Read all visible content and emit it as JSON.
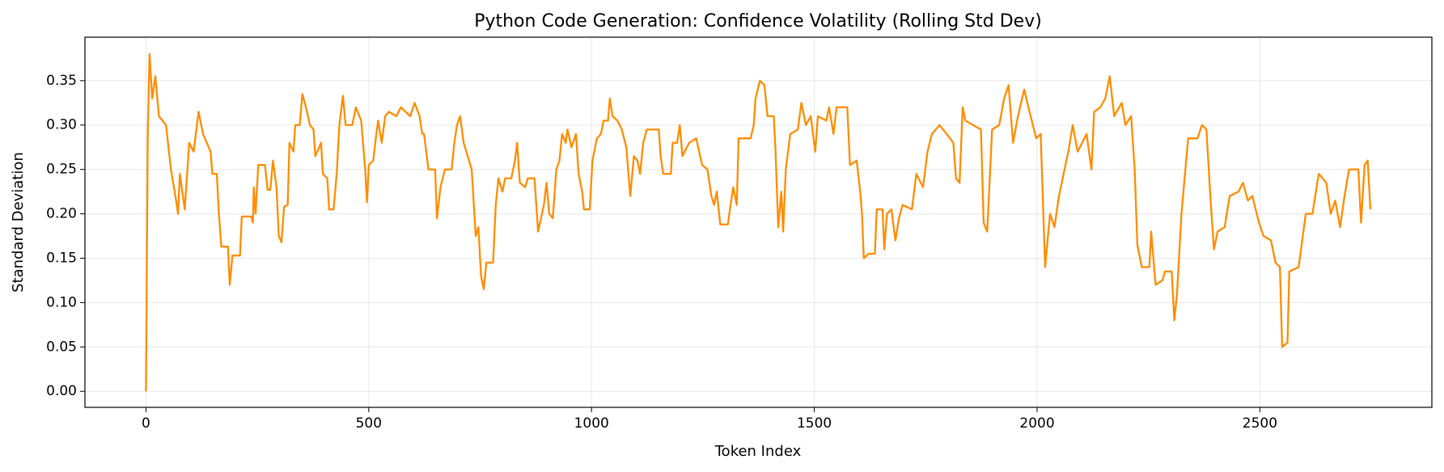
{
  "chart_data": {
    "type": "line",
    "title": "Python Code Generation: Confidence Volatility (Rolling Std Dev)",
    "x_label": "Token Index",
    "y_label": "Standard Deviation",
    "xlim": [
      -137,
      2886
    ],
    "ylim": [
      -0.018,
      0.399
    ],
    "xticks": [
      0,
      500,
      1000,
      1500,
      2000,
      2500
    ],
    "yticks": [
      {
        "value": 0,
        "label": "0.00"
      },
      {
        "value": 0.05,
        "label": "0.05"
      },
      {
        "value": 0.1,
        "label": "0.10"
      },
      {
        "value": 0.15,
        "label": "0.15"
      },
      {
        "value": 0.2,
        "label": "0.20"
      },
      {
        "value": 0.25,
        "label": "0.25"
      },
      {
        "value": 0.3,
        "label": "0.30"
      },
      {
        "value": 0.35,
        "label": "0.35"
      }
    ],
    "grid": true,
    "x": [
      0,
      4,
      8,
      14,
      21,
      29,
      45,
      56,
      66,
      72,
      76,
      87,
      97,
      107,
      118,
      128,
      145,
      149,
      159,
      163,
      169,
      184,
      188,
      194,
      211,
      215,
      236,
      240,
      242,
      246,
      252,
      267,
      273,
      279,
      285,
      293,
      298,
      304,
      310,
      318,
      322,
      331,
      335,
      345,
      351,
      359,
      368,
      376,
      380,
      393,
      397,
      407,
      411,
      421,
      428,
      434,
      442,
      448,
      463,
      471,
      483,
      492,
      496,
      500,
      510,
      517,
      521,
      529,
      537,
      545,
      562,
      572,
      593,
      603,
      614,
      620,
      624,
      634,
      649,
      653,
      661,
      671,
      686,
      692,
      698,
      705,
      713,
      731,
      740,
      746,
      752,
      758,
      764,
      779,
      785,
      791,
      800,
      806,
      820,
      828,
      833,
      839,
      851,
      857,
      872,
      880,
      893,
      899,
      905,
      913,
      921,
      928,
      934,
      942,
      946,
      955,
      965,
      971,
      979,
      983,
      996,
      1002,
      1012,
      1021,
      1027,
      1037,
      1041,
      1047,
      1058,
      1068,
      1078,
      1087,
      1095,
      1103,
      1109,
      1116,
      1124,
      1151,
      1155,
      1161,
      1178,
      1182,
      1192,
      1198,
      1204,
      1219,
      1235,
      1248,
      1260,
      1269,
      1275,
      1281,
      1289,
      1306,
      1312,
      1318,
      1326,
      1330,
      1357,
      1364,
      1368,
      1378,
      1388,
      1395,
      1409,
      1413,
      1419,
      1426,
      1430,
      1436,
      1446,
      1463,
      1471,
      1481,
      1492,
      1502,
      1508,
      1527,
      1533,
      1543,
      1550,
      1574,
      1580,
      1595,
      1603,
      1607,
      1611,
      1622,
      1636,
      1640,
      1653,
      1657,
      1663,
      1673,
      1682,
      1690,
      1698,
      1719,
      1729,
      1744,
      1754,
      1764,
      1781,
      1797,
      1812,
      1818,
      1826,
      1833,
      1839,
      1874,
      1880,
      1888,
      1899,
      1915,
      1926,
      1936,
      1946,
      1957,
      1971,
      1983,
      1998,
      2008,
      2018,
      2029,
      2039,
      2049,
      2070,
      2080,
      2091,
      2111,
      2122,
      2128,
      2142,
      2153,
      2163,
      2173,
      2190,
      2198,
      2211,
      2219,
      2225,
      2235,
      2252,
      2256,
      2266,
      2281,
      2287,
      2302,
      2308,
      2314,
      2324,
      2339,
      2360,
      2370,
      2380,
      2390,
      2397,
      2405,
      2421,
      2432,
      2452,
      2462,
      2473,
      2483,
      2498,
      2508,
      2525,
      2535,
      2545,
      2550,
      2562,
      2566,
      2587,
      2591,
      2603,
      2618,
      2632,
      2649,
      2659,
      2669,
      2680,
      2690,
      2700,
      2721,
      2727,
      2735,
      2742,
      2748
    ],
    "series": [
      {
        "name": "Rolling Std Dev",
        "color": "#ff8c00",
        "values": [
          0.0,
          0.29,
          0.38,
          0.33,
          0.355,
          0.31,
          0.3,
          0.25,
          0.22,
          0.2,
          0.245,
          0.205,
          0.28,
          0.27,
          0.315,
          0.29,
          0.27,
          0.245,
          0.245,
          0.205,
          0.163,
          0.163,
          0.12,
          0.153,
          0.153,
          0.197,
          0.197,
          0.19,
          0.23,
          0.2,
          0.255,
          0.255,
          0.227,
          0.227,
          0.26,
          0.23,
          0.175,
          0.168,
          0.208,
          0.21,
          0.28,
          0.27,
          0.3,
          0.3,
          0.335,
          0.32,
          0.3,
          0.295,
          0.265,
          0.28,
          0.245,
          0.24,
          0.205,
          0.205,
          0.245,
          0.3,
          0.333,
          0.3,
          0.3,
          0.32,
          0.305,
          0.25,
          0.213,
          0.255,
          0.26,
          0.29,
          0.305,
          0.28,
          0.31,
          0.315,
          0.31,
          0.32,
          0.31,
          0.325,
          0.31,
          0.29,
          0.29,
          0.25,
          0.25,
          0.195,
          0.23,
          0.25,
          0.25,
          0.28,
          0.3,
          0.31,
          0.28,
          0.25,
          0.175,
          0.185,
          0.13,
          0.115,
          0.145,
          0.145,
          0.21,
          0.24,
          0.225,
          0.24,
          0.24,
          0.26,
          0.28,
          0.235,
          0.23,
          0.24,
          0.24,
          0.18,
          0.21,
          0.235,
          0.2,
          0.195,
          0.25,
          0.26,
          0.29,
          0.28,
          0.295,
          0.275,
          0.29,
          0.245,
          0.225,
          0.205,
          0.205,
          0.26,
          0.285,
          0.29,
          0.305,
          0.305,
          0.33,
          0.31,
          0.305,
          0.295,
          0.275,
          0.22,
          0.265,
          0.26,
          0.245,
          0.28,
          0.295,
          0.295,
          0.265,
          0.245,
          0.245,
          0.28,
          0.28,
          0.3,
          0.265,
          0.28,
          0.285,
          0.255,
          0.25,
          0.22,
          0.21,
          0.225,
          0.188,
          0.188,
          0.21,
          0.23,
          0.21,
          0.285,
          0.285,
          0.3,
          0.33,
          0.35,
          0.345,
          0.31,
          0.31,
          0.27,
          0.185,
          0.225,
          0.18,
          0.25,
          0.29,
          0.295,
          0.325,
          0.3,
          0.31,
          0.27,
          0.31,
          0.305,
          0.32,
          0.29,
          0.32,
          0.32,
          0.255,
          0.26,
          0.225,
          0.2,
          0.15,
          0.155,
          0.155,
          0.205,
          0.205,
          0.16,
          0.2,
          0.205,
          0.17,
          0.195,
          0.21,
          0.205,
          0.245,
          0.23,
          0.27,
          0.29,
          0.3,
          0.29,
          0.28,
          0.24,
          0.235,
          0.32,
          0.305,
          0.295,
          0.19,
          0.18,
          0.295,
          0.3,
          0.33,
          0.345,
          0.28,
          0.31,
          0.34,
          0.315,
          0.285,
          0.29,
          0.14,
          0.2,
          0.185,
          0.22,
          0.27,
          0.3,
          0.27,
          0.29,
          0.25,
          0.315,
          0.32,
          0.33,
          0.355,
          0.31,
          0.325,
          0.3,
          0.31,
          0.25,
          0.165,
          0.14,
          0.14,
          0.18,
          0.12,
          0.125,
          0.135,
          0.135,
          0.08,
          0.11,
          0.2,
          0.285,
          0.285,
          0.3,
          0.295,
          0.21,
          0.16,
          0.18,
          0.185,
          0.22,
          0.225,
          0.235,
          0.215,
          0.22,
          0.19,
          0.175,
          0.17,
          0.145,
          0.14,
          0.05,
          0.055,
          0.135,
          0.14,
          0.155,
          0.2,
          0.2,
          0.245,
          0.235,
          0.2,
          0.215,
          0.185,
          0.22,
          0.25,
          0.25,
          0.19,
          0.255,
          0.26,
          0.205
        ]
      }
    ]
  }
}
